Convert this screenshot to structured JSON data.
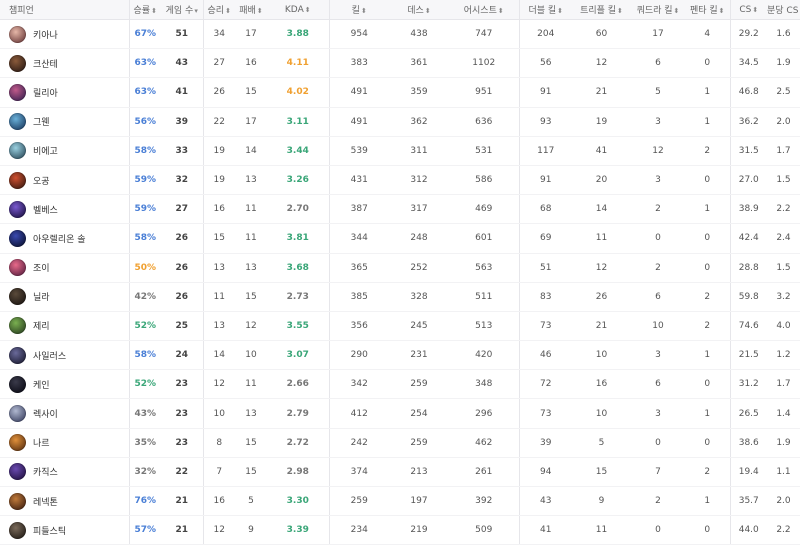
{
  "headers": {
    "champion": "챔피언",
    "winrate": "승률",
    "games": "게임 수",
    "wins": "승리",
    "losses": "패배",
    "kda": "KDA",
    "kills": "킬",
    "deaths": "데스",
    "assists": "어시스트",
    "double": "더블 킬",
    "triple": "트리플 킬",
    "quadra": "쿼드라 킬",
    "penta": "펜타 킬",
    "cs": "CS",
    "cspm": "분당 CS"
  },
  "sort_icons": {
    "neutral": "⬍",
    "desc": "▾"
  },
  "colors": {
    "blue": "#4a7fd6",
    "green": "#3aa678",
    "orange": "#f0a030",
    "gray": "#777777"
  },
  "rows": [
    {
      "name": "키아나",
      "winrate": "67%",
      "wr_color": "blue",
      "games": "51",
      "wins": "34",
      "losses": "17",
      "kda": "3.88",
      "kda_color": "green",
      "kills": "954",
      "deaths": "438",
      "assists": "747",
      "double": "204",
      "triple": "60",
      "quadra": "17",
      "penta": "4",
      "cs": "29.2",
      "cspm": "1.6",
      "avatar": [
        "#e6b7a8",
        "#6a3a3a"
      ]
    },
    {
      "name": "크산테",
      "winrate": "63%",
      "wr_color": "blue",
      "games": "43",
      "wins": "27",
      "losses": "16",
      "kda": "4.11",
      "kda_color": "orange",
      "kills": "383",
      "deaths": "361",
      "assists": "1102",
      "double": "56",
      "triple": "12",
      "quadra": "6",
      "penta": "0",
      "cs": "34.5",
      "cspm": "1.9",
      "avatar": [
        "#8a5a3a",
        "#2a1a14"
      ]
    },
    {
      "name": "릴리아",
      "winrate": "63%",
      "wr_color": "blue",
      "games": "41",
      "wins": "26",
      "losses": "15",
      "kda": "4.02",
      "kda_color": "orange",
      "kills": "491",
      "deaths": "359",
      "assists": "951",
      "double": "91",
      "triple": "21",
      "quadra": "5",
      "penta": "1",
      "cs": "46.8",
      "cspm": "2.5",
      "avatar": [
        "#c05a8a",
        "#3a2050"
      ]
    },
    {
      "name": "그웬",
      "winrate": "56%",
      "wr_color": "blue",
      "games": "39",
      "wins": "22",
      "losses": "17",
      "kda": "3.11",
      "kda_color": "green",
      "kills": "491",
      "deaths": "362",
      "assists": "636",
      "double": "93",
      "triple": "19",
      "quadra": "3",
      "penta": "1",
      "cs": "36.2",
      "cspm": "2.0",
      "avatar": [
        "#6ab0d8",
        "#1a3a60"
      ]
    },
    {
      "name": "비에고",
      "winrate": "58%",
      "wr_color": "blue",
      "games": "33",
      "wins": "19",
      "losses": "14",
      "kda": "3.44",
      "kda_color": "green",
      "kills": "539",
      "deaths": "311",
      "assists": "531",
      "double": "117",
      "triple": "41",
      "quadra": "12",
      "penta": "2",
      "cs": "31.5",
      "cspm": "1.7",
      "avatar": [
        "#9ad0e0",
        "#2a4a5a"
      ]
    },
    {
      "name": "오공",
      "winrate": "59%",
      "wr_color": "blue",
      "games": "32",
      "wins": "19",
      "losses": "13",
      "kda": "3.26",
      "kda_color": "green",
      "kills": "431",
      "deaths": "312",
      "assists": "586",
      "double": "91",
      "triple": "20",
      "quadra": "3",
      "penta": "0",
      "cs": "27.0",
      "cspm": "1.5",
      "avatar": [
        "#d05030",
        "#3a1a10"
      ]
    },
    {
      "name": "벨베스",
      "winrate": "59%",
      "wr_color": "blue",
      "games": "27",
      "wins": "16",
      "losses": "11",
      "kda": "2.70",
      "kda_color": "gray",
      "kills": "387",
      "deaths": "317",
      "assists": "469",
      "double": "68",
      "triple": "14",
      "quadra": "2",
      "penta": "1",
      "cs": "38.9",
      "cspm": "2.2",
      "avatar": [
        "#7a5ad0",
        "#1a1040"
      ]
    },
    {
      "name": "아우렐리온 솔",
      "winrate": "58%",
      "wr_color": "blue",
      "games": "26",
      "wins": "15",
      "losses": "11",
      "kda": "3.81",
      "kda_color": "green",
      "kills": "344",
      "deaths": "248",
      "assists": "601",
      "double": "69",
      "triple": "11",
      "quadra": "0",
      "penta": "0",
      "cs": "42.4",
      "cspm": "2.4",
      "avatar": [
        "#3a4ab0",
        "#0a1030"
      ]
    },
    {
      "name": "조이",
      "winrate": "50%",
      "wr_color": "orange",
      "games": "26",
      "wins": "13",
      "losses": "13",
      "kda": "3.68",
      "kda_color": "green",
      "kills": "365",
      "deaths": "252",
      "assists": "563",
      "double": "51",
      "triple": "12",
      "quadra": "2",
      "penta": "0",
      "cs": "28.8",
      "cspm": "1.5",
      "avatar": [
        "#e86a8a",
        "#5a2040"
      ]
    },
    {
      "name": "닐라",
      "winrate": "42%",
      "wr_color": "gray",
      "games": "26",
      "wins": "11",
      "losses": "15",
      "kda": "2.73",
      "kda_color": "gray",
      "kills": "385",
      "deaths": "328",
      "assists": "511",
      "double": "83",
      "triple": "26",
      "quadra": "6",
      "penta": "2",
      "cs": "59.8",
      "cspm": "3.2",
      "avatar": [
        "#5a4a3a",
        "#1a1410"
      ]
    },
    {
      "name": "제리",
      "winrate": "52%",
      "wr_color": "green",
      "games": "25",
      "wins": "13",
      "losses": "12",
      "kda": "3.55",
      "kda_color": "green",
      "kills": "356",
      "deaths": "245",
      "assists": "513",
      "double": "73",
      "triple": "21",
      "quadra": "10",
      "penta": "2",
      "cs": "74.6",
      "cspm": "4.0",
      "avatar": [
        "#7ab050",
        "#2a4020"
      ]
    },
    {
      "name": "사일러스",
      "winrate": "58%",
      "wr_color": "blue",
      "games": "24",
      "wins": "14",
      "losses": "10",
      "kda": "3.07",
      "kda_color": "green",
      "kills": "290",
      "deaths": "231",
      "assists": "420",
      "double": "46",
      "triple": "10",
      "quadra": "3",
      "penta": "1",
      "cs": "21.5",
      "cspm": "1.2",
      "avatar": [
        "#6a6a9a",
        "#1a1a30"
      ]
    },
    {
      "name": "케인",
      "winrate": "52%",
      "wr_color": "green",
      "games": "23",
      "wins": "12",
      "losses": "11",
      "kda": "2.66",
      "kda_color": "gray",
      "kills": "342",
      "deaths": "259",
      "assists": "348",
      "double": "72",
      "triple": "16",
      "quadra": "6",
      "penta": "0",
      "cs": "31.2",
      "cspm": "1.7",
      "avatar": [
        "#3a3a4a",
        "#0a0a14"
      ]
    },
    {
      "name": "렉사이",
      "winrate": "43%",
      "wr_color": "gray",
      "games": "23",
      "wins": "10",
      "losses": "13",
      "kda": "2.79",
      "kda_color": "gray",
      "kills": "412",
      "deaths": "254",
      "assists": "296",
      "double": "73",
      "triple": "10",
      "quadra": "3",
      "penta": "1",
      "cs": "26.5",
      "cspm": "1.4",
      "avatar": [
        "#b0b8d0",
        "#3a4060"
      ]
    },
    {
      "name": "나르",
      "winrate": "35%",
      "wr_color": "gray",
      "games": "23",
      "wins": "8",
      "losses": "15",
      "kda": "2.72",
      "kda_color": "gray",
      "kills": "242",
      "deaths": "259",
      "assists": "462",
      "double": "39",
      "triple": "5",
      "quadra": "0",
      "penta": "0",
      "cs": "38.6",
      "cspm": "1.9",
      "avatar": [
        "#e0903a",
        "#5a3010"
      ]
    },
    {
      "name": "카직스",
      "winrate": "32%",
      "wr_color": "gray",
      "games": "22",
      "wins": "7",
      "losses": "15",
      "kda": "2.98",
      "kda_color": "gray",
      "kills": "374",
      "deaths": "213",
      "assists": "261",
      "double": "94",
      "triple": "15",
      "quadra": "7",
      "penta": "2",
      "cs": "19.4",
      "cspm": "1.1",
      "avatar": [
        "#6a4ab0",
        "#201040"
      ]
    },
    {
      "name": "레넥톤",
      "winrate": "76%",
      "wr_color": "blue",
      "games": "21",
      "wins": "16",
      "losses": "5",
      "kda": "3.30",
      "kda_color": "green",
      "kills": "259",
      "deaths": "197",
      "assists": "392",
      "double": "43",
      "triple": "9",
      "quadra": "2",
      "penta": "1",
      "cs": "35.7",
      "cspm": "2.0",
      "avatar": [
        "#c07a3a",
        "#402010"
      ]
    },
    {
      "name": "피들스틱",
      "winrate": "57%",
      "wr_color": "blue",
      "games": "21",
      "wins": "12",
      "losses": "9",
      "kda": "3.39",
      "kda_color": "green",
      "kills": "234",
      "deaths": "219",
      "assists": "509",
      "double": "41",
      "triple": "11",
      "quadra": "0",
      "penta": "0",
      "cs": "44.0",
      "cspm": "2.2",
      "avatar": [
        "#7a6a5a",
        "#201a14"
      ]
    }
  ]
}
